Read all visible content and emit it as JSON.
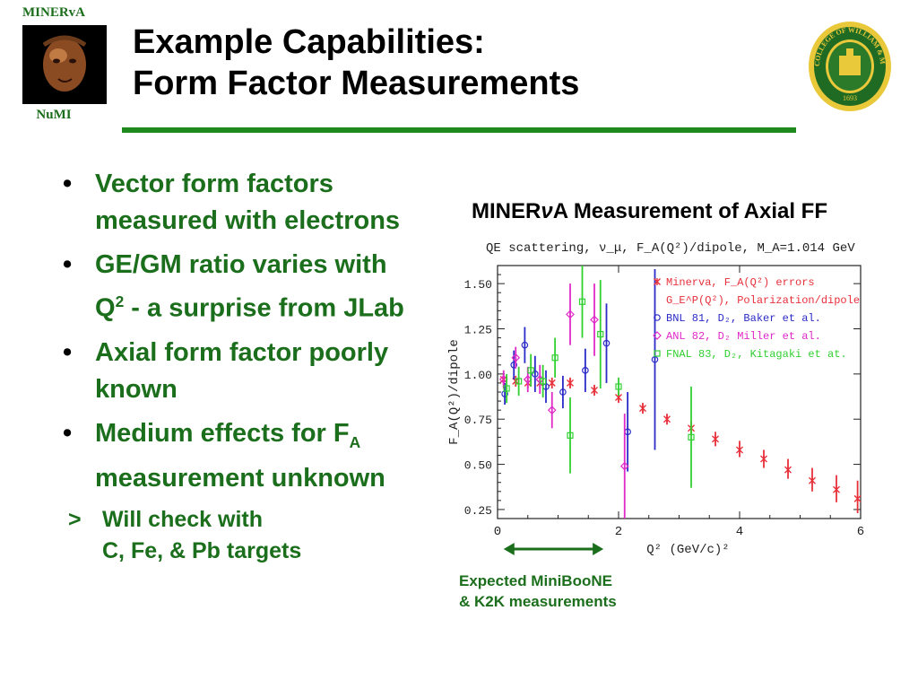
{
  "logo_left": {
    "top_label": "MINERvA",
    "bottom_label": "NuMI"
  },
  "title": {
    "line1": "Example Capabilities:",
    "line2": "Form Factor Measurements"
  },
  "seal": {
    "text": "COLLEGE OF WILLIAM & MARY",
    "year": "1693"
  },
  "bullets": [
    {
      "text": "Vector form factors measured with electrons"
    },
    {
      "text_pre": "GE/GM ratio varies with Q",
      "sup": "2",
      "text_post": " - a surprise from JLab"
    },
    {
      "text": "Axial form factor poorly known"
    },
    {
      "text_pre": "Medium effects for F",
      "sub": "A",
      "text_post": " measurement unknown"
    }
  ],
  "sub_bullet": {
    "marker": ">",
    "line1": "Will check with",
    "line2": "C, Fe, & Pb targets"
  },
  "chart_heading": {
    "pre": "MINER",
    "nu": "ν",
    "post": "A Measurement of  Axial FF"
  },
  "note": {
    "line1": "Expected MiniBooNE",
    "line2": "& K2K measurements"
  },
  "colors": {
    "green_text": "#1b6e1b",
    "rule_green": "#1e8a1e",
    "minerva": "#e8303a",
    "gep": "#e8303a",
    "bnl": "#2b2bc8",
    "anl": "#e028c8",
    "fnal": "#30d030"
  },
  "chart_data": {
    "type": "scatter",
    "title": "QE scattering, ν_μ, F_A(Q²)/dipole, M_A=1.014 GeV",
    "xlabel": "Q² (GeV/c)²",
    "ylabel": "F_A(Q²)/dipole",
    "xlim": [
      0,
      6
    ],
    "ylim": [
      0.2,
      1.6
    ],
    "xticks": [
      0,
      2,
      4,
      6
    ],
    "yticks": [
      0.25,
      0.5,
      0.75,
      1.0,
      1.25,
      1.5
    ],
    "ytick_labels": [
      "0.25",
      "0.50",
      "0.75",
      "1.00",
      "1.25",
      "1.50"
    ],
    "legend_position": "top-right",
    "series": [
      {
        "name": "Minerva, F_A(Q²) errors",
        "marker": "star",
        "color": "#e8303a",
        "points": [
          {
            "x": 0.1,
            "y": 0.97,
            "lo": 0.93,
            "hi": 1.0
          },
          {
            "x": 0.3,
            "y": 0.96,
            "lo": 0.93,
            "hi": 0.99
          },
          {
            "x": 0.5,
            "y": 0.95,
            "lo": 0.92,
            "hi": 0.98
          },
          {
            "x": 0.7,
            "y": 0.95,
            "lo": 0.92,
            "hi": 0.98
          },
          {
            "x": 0.9,
            "y": 0.95,
            "lo": 0.92,
            "hi": 0.98
          },
          {
            "x": 1.2,
            "y": 0.95,
            "lo": 0.92,
            "hi": 0.98
          },
          {
            "x": 1.6,
            "y": 0.91,
            "lo": 0.88,
            "hi": 0.94
          },
          {
            "x": 2.0,
            "y": 0.87,
            "lo": 0.84,
            "hi": 0.9
          },
          {
            "x": 2.4,
            "y": 0.81,
            "lo": 0.78,
            "hi": 0.84
          },
          {
            "x": 2.8,
            "y": 0.75,
            "lo": 0.72,
            "hi": 0.78
          },
          {
            "x": 3.2,
            "y": 0.7,
            "lo": 0.66,
            "hi": 0.74
          },
          {
            "x": 3.6,
            "y": 0.64,
            "lo": 0.6,
            "hi": 0.68
          },
          {
            "x": 4.0,
            "y": 0.58,
            "lo": 0.54,
            "hi": 0.63
          },
          {
            "x": 4.4,
            "y": 0.53,
            "lo": 0.48,
            "hi": 0.58
          },
          {
            "x": 4.8,
            "y": 0.47,
            "lo": 0.42,
            "hi": 0.53
          },
          {
            "x": 5.2,
            "y": 0.41,
            "lo": 0.35,
            "hi": 0.48
          },
          {
            "x": 5.6,
            "y": 0.36,
            "lo": 0.29,
            "hi": 0.44
          },
          {
            "x": 5.95,
            "y": 0.31,
            "lo": 0.23,
            "hi": 0.41
          }
        ]
      },
      {
        "name": "G_E^P(Q²), Polarization/dipole",
        "marker": "none",
        "color": "#e8303a",
        "points": []
      },
      {
        "name": "BNL 81, D₂, Baker et al.",
        "marker": "circle",
        "color": "#2b2bc8",
        "points": [
          {
            "x": 0.12,
            "y": 0.89,
            "lo": 0.83,
            "hi": 0.95
          },
          {
            "x": 0.27,
            "y": 1.05,
            "lo": 0.97,
            "hi": 1.13
          },
          {
            "x": 0.45,
            "y": 1.16,
            "lo": 1.06,
            "hi": 1.26
          },
          {
            "x": 0.62,
            "y": 1.0,
            "lo": 0.9,
            "hi": 1.1
          },
          {
            "x": 0.8,
            "y": 0.93,
            "lo": 0.84,
            "hi": 1.02
          },
          {
            "x": 1.08,
            "y": 0.9,
            "lo": 0.81,
            "hi": 0.99
          },
          {
            "x": 1.45,
            "y": 1.02,
            "lo": 0.9,
            "hi": 1.14
          },
          {
            "x": 1.8,
            "y": 1.17,
            "lo": 0.95,
            "hi": 1.39
          },
          {
            "x": 2.15,
            "y": 0.68,
            "lo": 0.46,
            "hi": 0.9
          },
          {
            "x": 2.6,
            "y": 1.08,
            "lo": 0.58,
            "hi": 1.58
          }
        ]
      },
      {
        "name": "ANL 82, D₂ Miller et al.",
        "marker": "diamond",
        "color": "#e028c8",
        "points": [
          {
            "x": 0.1,
            "y": 0.97,
            "lo": 0.92,
            "hi": 1.02
          },
          {
            "x": 0.3,
            "y": 1.09,
            "lo": 1.03,
            "hi": 1.15
          },
          {
            "x": 0.5,
            "y": 0.97,
            "lo": 0.9,
            "hi": 1.04
          },
          {
            "x": 0.7,
            "y": 0.97,
            "lo": 0.89,
            "hi": 1.05
          },
          {
            "x": 0.9,
            "y": 0.8,
            "lo": 0.7,
            "hi": 0.9
          },
          {
            "x": 1.2,
            "y": 1.33,
            "lo": 1.16,
            "hi": 1.5
          },
          {
            "x": 1.6,
            "y": 1.3,
            "lo": 1.1,
            "hi": 1.5
          },
          {
            "x": 2.1,
            "y": 0.49,
            "lo": 0.2,
            "hi": 0.78
          }
        ]
      },
      {
        "name": "FNAL 83, D₂, Kitagaki et at.",
        "marker": "square",
        "color": "#30d030",
        "points": [
          {
            "x": 0.15,
            "y": 0.92,
            "lo": 0.84,
            "hi": 1.0
          },
          {
            "x": 0.35,
            "y": 0.96,
            "lo": 0.88,
            "hi": 1.04
          },
          {
            "x": 0.55,
            "y": 1.02,
            "lo": 0.93,
            "hi": 1.11
          },
          {
            "x": 0.75,
            "y": 0.96,
            "lo": 0.87,
            "hi": 1.05
          },
          {
            "x": 0.95,
            "y": 1.09,
            "lo": 0.98,
            "hi": 1.2
          },
          {
            "x": 1.2,
            "y": 0.66,
            "lo": 0.45,
            "hi": 0.87
          },
          {
            "x": 1.4,
            "y": 1.4,
            "lo": 1.2,
            "hi": 1.6
          },
          {
            "x": 1.7,
            "y": 1.22,
            "lo": 0.92,
            "hi": 1.52
          },
          {
            "x": 2.0,
            "y": 0.93,
            "lo": 0.88,
            "hi": 0.98
          },
          {
            "x": 3.2,
            "y": 0.65,
            "lo": 0.37,
            "hi": 0.93
          }
        ]
      }
    ]
  }
}
